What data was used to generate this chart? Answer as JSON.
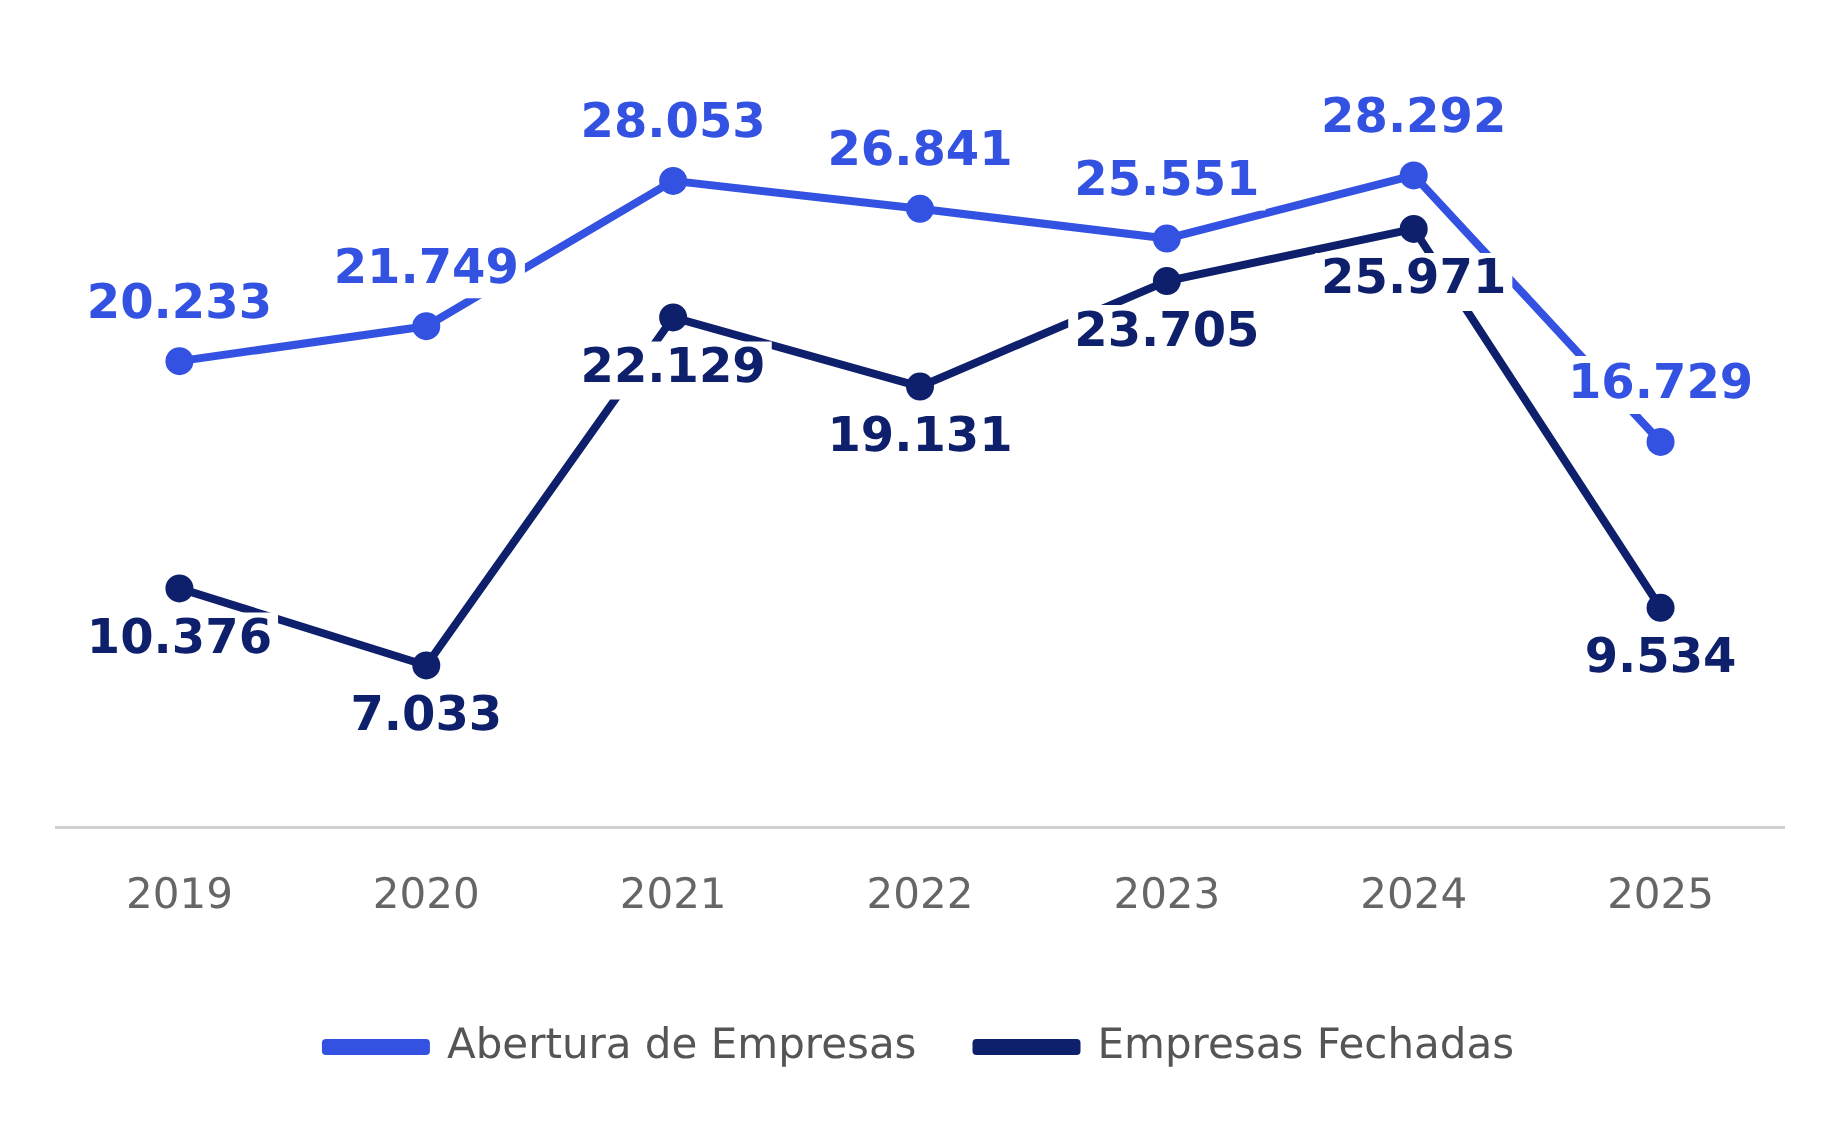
{
  "chart_data": {
    "type": "line",
    "categories": [
      "2019",
      "2020",
      "2021",
      "2022",
      "2023",
      "2024",
      "2025"
    ],
    "series": [
      {
        "name": "Abertura de Empresas",
        "color": "#3452e1",
        "values": [
          20233,
          21749,
          28053,
          26841,
          25551,
          28292,
          16729
        ],
        "value_labels": [
          "20.233",
          "21.749",
          "28.053",
          "26.841",
          "25.551",
          "28.292",
          "16.729"
        ]
      },
      {
        "name": "Empresas Fechadas",
        "color": "#0e1f6b",
        "values": [
          10376,
          7033,
          22129,
          19131,
          23705,
          25971,
          9534
        ],
        "value_labels": [
          "10.376",
          "7.033",
          "22.129",
          "19.131",
          "23.705",
          "25.971",
          "9.534"
        ]
      }
    ],
    "tick_labels": "x",
    "grid": false,
    "legend": "bottom",
    "marker": "circle",
    "line_style": "solid"
  }
}
